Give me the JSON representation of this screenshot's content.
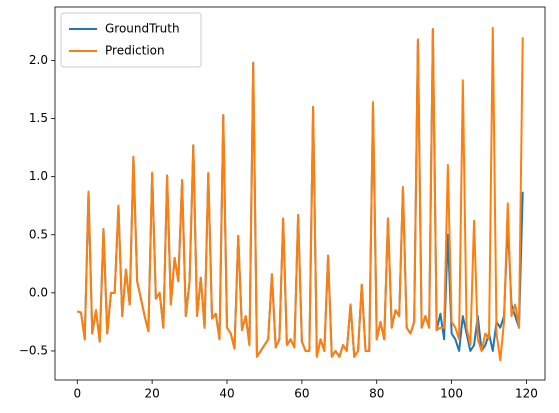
{
  "chart_data": {
    "type": "line",
    "x": [
      0,
      1,
      2,
      3,
      4,
      5,
      6,
      7,
      8,
      9,
      10,
      11,
      12,
      13,
      14,
      15,
      16,
      17,
      18,
      19,
      20,
      21,
      22,
      23,
      24,
      25,
      26,
      27,
      28,
      29,
      30,
      31,
      32,
      33,
      34,
      35,
      36,
      37,
      38,
      39,
      40,
      41,
      42,
      43,
      44,
      45,
      46,
      47,
      48,
      49,
      50,
      51,
      52,
      53,
      54,
      55,
      56,
      57,
      58,
      59,
      60,
      61,
      62,
      63,
      64,
      65,
      66,
      67,
      68,
      69,
      70,
      71,
      72,
      73,
      74,
      75,
      76,
      77,
      78,
      79,
      80,
      81,
      82,
      83,
      84,
      85,
      86,
      87,
      88,
      89,
      90,
      91,
      92,
      93,
      94,
      95,
      96,
      97,
      98,
      99,
      100,
      101,
      102,
      103,
      104,
      105,
      106,
      107,
      108,
      109,
      110,
      111,
      112,
      113,
      114,
      115,
      116,
      117,
      118,
      119
    ],
    "series": [
      {
        "name": "GroundTruth",
        "color": "#1f77b4",
        "values": [
          -0.16,
          -0.17,
          -0.4,
          0.87,
          -0.35,
          -0.15,
          -0.42,
          0.55,
          -0.35,
          0.0,
          0.0,
          0.75,
          -0.2,
          0.2,
          -0.1,
          1.17,
          0.1,
          -0.05,
          -0.2,
          -0.33,
          1.03,
          -0.05,
          0.0,
          -0.3,
          1.01,
          -0.1,
          0.3,
          0.1,
          0.97,
          -0.2,
          0.1,
          1.27,
          -0.2,
          0.13,
          -0.3,
          1.03,
          -0.22,
          -0.18,
          -0.4,
          1.53,
          -0.3,
          -0.35,
          -0.48,
          0.49,
          -0.32,
          -0.2,
          -0.45,
          1.98,
          -0.55,
          -0.5,
          -0.45,
          -0.4,
          0.16,
          -0.47,
          -0.4,
          0.64,
          -0.45,
          -0.4,
          -0.47,
          0.67,
          -0.42,
          -0.5,
          -0.5,
          1.6,
          -0.55,
          -0.4,
          -0.5,
          0.32,
          -0.55,
          -0.5,
          -0.55,
          -0.45,
          -0.5,
          -0.1,
          -0.55,
          -0.5,
          0.07,
          -0.5,
          -0.5,
          1.64,
          -0.4,
          -0.25,
          -0.4,
          0.64,
          -0.3,
          -0.15,
          -0.2,
          0.91,
          -0.3,
          -0.35,
          -0.25,
          2.18,
          -0.3,
          -0.2,
          -0.3,
          2.27,
          -0.32,
          -0.18,
          -0.4,
          0.5,
          -0.35,
          -0.4,
          -0.5,
          -0.2,
          -0.35,
          -0.5,
          -0.45,
          -0.2,
          -0.5,
          -0.45,
          -0.35,
          -0.5,
          -0.25,
          -0.3,
          -0.2,
          0.6,
          -0.1,
          -0.2,
          -0.3,
          0.87
        ]
      },
      {
        "name": "Prediction",
        "color": "#ff7f0e",
        "values": [
          -0.16,
          -0.17,
          -0.4,
          0.87,
          -0.35,
          -0.15,
          -0.42,
          0.55,
          -0.35,
          0.0,
          0.0,
          0.75,
          -0.2,
          0.2,
          -0.1,
          1.17,
          0.1,
          -0.05,
          -0.2,
          -0.33,
          1.03,
          -0.05,
          0.0,
          -0.3,
          1.01,
          -0.1,
          0.3,
          0.1,
          0.97,
          -0.2,
          0.1,
          1.27,
          -0.2,
          0.13,
          -0.3,
          1.03,
          -0.22,
          -0.18,
          -0.4,
          1.53,
          -0.3,
          -0.35,
          -0.48,
          0.49,
          -0.32,
          -0.2,
          -0.45,
          1.98,
          -0.55,
          -0.5,
          -0.45,
          -0.4,
          0.16,
          -0.47,
          -0.4,
          0.64,
          -0.45,
          -0.4,
          -0.47,
          0.67,
          -0.42,
          -0.5,
          -0.5,
          1.6,
          -0.55,
          -0.4,
          -0.5,
          0.32,
          -0.55,
          -0.5,
          -0.55,
          -0.45,
          -0.5,
          -0.1,
          -0.55,
          -0.5,
          0.07,
          -0.5,
          -0.5,
          1.64,
          -0.4,
          -0.25,
          -0.4,
          0.64,
          -0.3,
          -0.15,
          -0.2,
          0.91,
          -0.3,
          -0.35,
          -0.25,
          2.18,
          -0.3,
          -0.2,
          -0.3,
          2.27,
          -0.32,
          -0.3,
          -0.3,
          1.1,
          -0.25,
          -0.3,
          -0.4,
          1.83,
          -0.3,
          -0.45,
          0.62,
          -0.4,
          -0.5,
          -0.35,
          -0.4,
          2.28,
          -0.35,
          -0.58,
          -0.25,
          0.77,
          -0.2,
          -0.1,
          -0.3,
          2.2
        ]
      }
    ],
    "xlim": [
      -5.95,
      124.95
    ],
    "xticks": [
      0,
      20,
      40,
      60,
      80,
      100,
      120
    ],
    "ylim": [
      -0.75,
      2.46
    ],
    "yticks": [
      {
        "value": -0.5,
        "label": "−0.5"
      },
      {
        "value": 0,
        "label": "0.0"
      },
      0.5,
      {
        "value": 1,
        "label": "1.0"
      },
      1.5,
      {
        "value": 2,
        "label": "2.0"
      }
    ],
    "grid": false,
    "legend": "upper left"
  }
}
